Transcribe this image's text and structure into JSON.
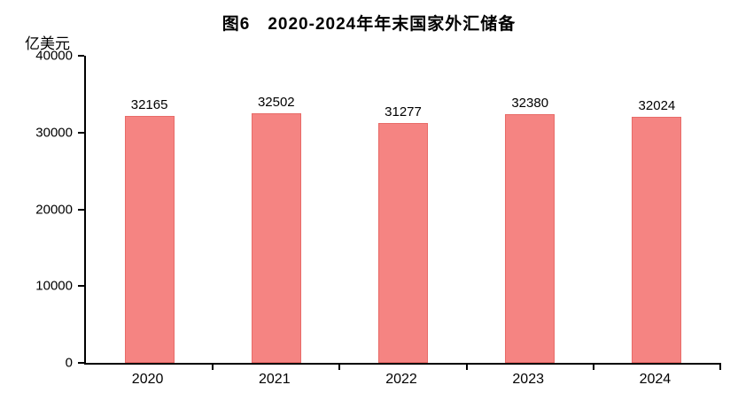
{
  "title": "图6　2020-2024年年末国家外汇储备",
  "unit_label": "亿美元",
  "colors": {
    "bar_fill": "#F58482",
    "bar_border": "#E86B68",
    "axis": "#000000",
    "text": "#000000",
    "background": "#FFFFFF"
  },
  "chart_data": {
    "type": "bar",
    "categories": [
      "2020",
      "2021",
      "2022",
      "2023",
      "2024"
    ],
    "values": [
      32165,
      32502,
      31277,
      32380,
      32024
    ],
    "title": "图6　2020-2024年年末国家外汇储备",
    "xlabel": "",
    "ylabel": "亿美元",
    "ylim": [
      0,
      40000
    ],
    "yticks": [
      0,
      10000,
      20000,
      30000,
      40000
    ],
    "grid": false,
    "legend": false,
    "data_labels": true
  }
}
